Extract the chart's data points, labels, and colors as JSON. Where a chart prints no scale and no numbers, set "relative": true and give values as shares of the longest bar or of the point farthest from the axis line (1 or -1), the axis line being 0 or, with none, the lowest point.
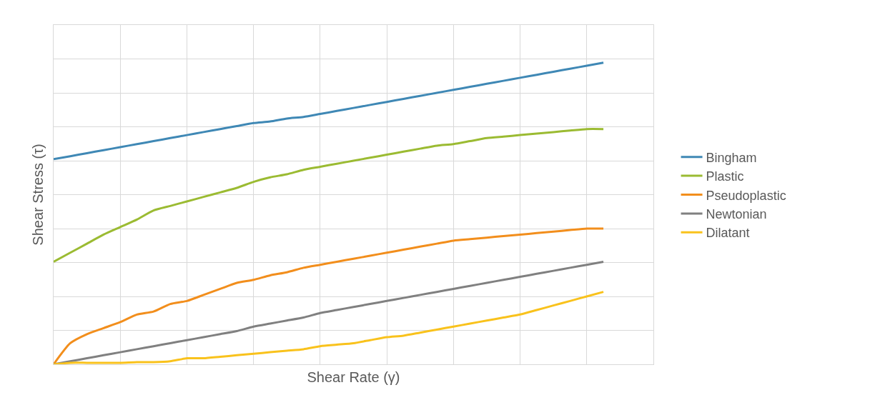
{
  "chart_data": {
    "type": "line",
    "relative": true,
    "xlabel": "Shear Rate (γ)",
    "ylabel": "Shear Stress (τ)",
    "grid": true,
    "legend": "right",
    "marker": "none",
    "line_style": "solid",
    "categories": [
      null,
      null,
      null,
      null,
      null,
      null,
      null,
      null,
      null,
      null,
      null,
      null,
      null,
      null,
      null,
      null,
      null,
      null,
      null,
      null,
      null,
      null,
      null,
      null,
      null,
      null,
      null,
      null,
      null,
      null,
      null,
      null,
      null,
      null,
      null,
      null,
      null
    ],
    "series": [
      {
        "name": "Bingham",
        "color": "#3f88b5",
        "values": [
          0.68,
          0.69,
          0.7,
          0.71,
          0.72,
          0.73,
          0.74,
          0.75,
          0.76,
          0.77,
          0.78,
          0.79,
          0.8,
          0.805,
          0.815,
          0.82,
          0.83,
          0.84,
          0.85,
          0.86,
          0.87,
          0.88,
          0.89,
          0.9,
          0.91,
          0.92,
          0.93,
          0.94,
          0.95,
          0.96,
          0.97,
          0.98,
          0.99,
          1.0,
          null,
          null,
          null
        ]
      },
      {
        "name": "Plastic",
        "color": "#9bbb32",
        "values": [
          0.34,
          0.37,
          0.4,
          0.43,
          0.455,
          0.48,
          0.51,
          0.525,
          0.54,
          0.555,
          0.57,
          0.585,
          0.605,
          0.62,
          0.63,
          0.645,
          0.655,
          0.665,
          0.675,
          0.685,
          0.695,
          0.705,
          0.715,
          0.725,
          0.73,
          0.74,
          0.75,
          0.755,
          0.76,
          0.765,
          0.77,
          0.775,
          0.78,
          0.78,
          null,
          null,
          null
        ]
      },
      {
        "name": "Pseudoplastic",
        "color": "#f28e1c",
        "values": [
          0,
          0.07,
          0.1,
          0.12,
          0.14,
          0.165,
          0.175,
          0.2,
          0.21,
          0.23,
          0.25,
          0.27,
          0.28,
          0.295,
          0.305,
          0.32,
          0.33,
          0.34,
          0.35,
          0.36,
          0.37,
          0.38,
          0.39,
          0.4,
          0.41,
          0.415,
          0.42,
          0.425,
          0.43,
          0.435,
          0.44,
          0.445,
          0.45,
          0.45,
          null,
          null,
          null
        ]
      },
      {
        "name": "Newtonian",
        "color": "#808080",
        "values": [
          0,
          0.01,
          0.02,
          0.03,
          0.04,
          0.05,
          0.06,
          0.07,
          0.08,
          0.09,
          0.1,
          0.11,
          0.125,
          0.135,
          0.145,
          0.155,
          0.17,
          0.18,
          0.19,
          0.2,
          0.21,
          0.22,
          0.23,
          0.24,
          0.25,
          0.26,
          0.27,
          0.28,
          0.29,
          0.3,
          0.31,
          0.32,
          0.33,
          0.34,
          null,
          null,
          null
        ]
      },
      {
        "name": "Dilatant",
        "color": "#f9c21c",
        "values": [
          0,
          0.005,
          0.005,
          0.005,
          0.005,
          0.007,
          0.007,
          0.01,
          0.02,
          0.02,
          0.025,
          0.03,
          0.035,
          0.04,
          0.045,
          0.05,
          0.06,
          0.065,
          0.07,
          0.08,
          0.09,
          0.095,
          0.105,
          0.115,
          0.125,
          0.135,
          0.145,
          0.155,
          0.165,
          0.18,
          0.195,
          0.21,
          0.225,
          0.24,
          null,
          null,
          null
        ]
      }
    ]
  }
}
